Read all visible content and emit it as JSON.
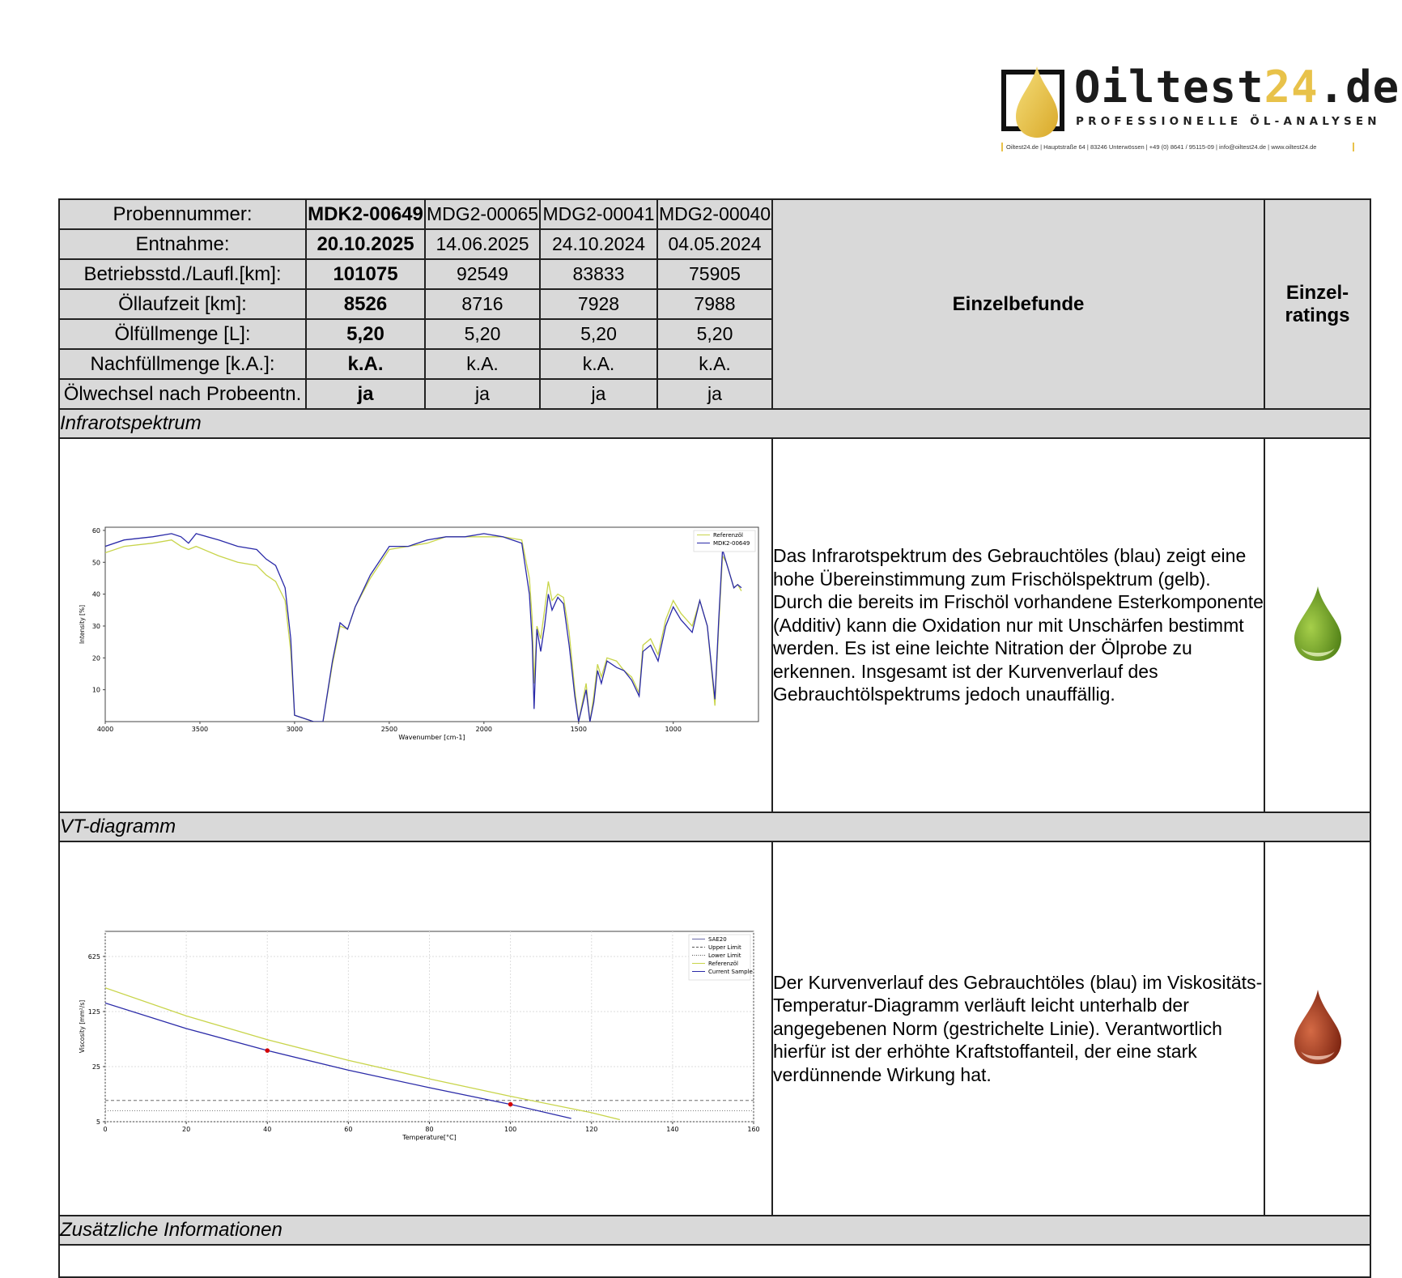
{
  "header": {
    "brand_main": "Oiltest",
    "brand_accent": "24",
    "brand_tld": ".de",
    "tagline": "PROFESSIONELLE ÖL-ANALYSEN",
    "contact": "Oiltest24.de  |  Hauptstraße 64  |  83246 Unterwössen  |  +49 (0) 8641 / 95115-09  |  info@oiltest24.de  |  www.oiltest24.de"
  },
  "samples_table": {
    "rows": [
      {
        "label": "Probennummer:",
        "values": [
          "MDK2-00649",
          "MDG2-00065",
          "MDG2-00041",
          "MDG2-00040"
        ]
      },
      {
        "label": "Entnahme:",
        "values": [
          "20.10.2025",
          "14.06.2025",
          "24.10.2024",
          "04.05.2024"
        ]
      },
      {
        "label": "Betriebsstd./Laufl.[km]:",
        "values": [
          "101075",
          "92549",
          "83833",
          "75905"
        ]
      },
      {
        "label": "Öllaufzeit [km]:",
        "values": [
          "8526",
          "8716",
          "7928",
          "7988"
        ]
      },
      {
        "label": "Ölfüllmenge [L]:",
        "values": [
          "5,20",
          "5,20",
          "5,20",
          "5,20"
        ]
      },
      {
        "label": "Nachfüllmenge [k.A.]:",
        "values": [
          "k.A.",
          "k.A.",
          "k.A.",
          "k.A."
        ]
      },
      {
        "label": "Ölwechsel nach Probeentn.",
        "values": [
          "ja",
          "ja",
          "ja",
          "ja"
        ]
      }
    ],
    "findings_header": "Einzelbefunde",
    "ratings_header_line1": "Einzel-",
    "ratings_header_line2": "ratings"
  },
  "sections": {
    "ir": {
      "title": "Infrarotspektrum",
      "finding": "Das Infrarotspektrum des Gebrauchtöles (blau) zeigt eine hohe Übereinstimmung zum Frischölspektrum (gelb). Durch die bereits im Frischöl vorhandene Esterkomponente (Additiv) kann die Oxidation nur mit Unschärfen bestimmt werden. Es ist eine leichte Nitration der Ölprobe zu erkennen. Insgesamt ist der Kurvenverlauf des Gebrauchtölspektrums jedoch unauffällig.",
      "rating_color": "#6fa02a"
    },
    "vt": {
      "title": "VT-diagramm",
      "finding": "Der Kurvenverlauf des Gebrauchtöles (blau) im Viskositäts-Temperatur-Diagramm verläuft leicht unterhalb der angegebenen Norm (gestrichelte Linie). Verantwortlich hierfür ist der erhöhte Kraftstoffanteil, der eine stark verdünnende Wirkung hat.",
      "rating_color": "#a83a1e"
    },
    "extra": {
      "title": "Zusätzliche Informationen"
    }
  },
  "chart_data": [
    {
      "type": "line",
      "xlabel": "Wavenumber [cm-1]",
      "ylabel": "Intensity [%]",
      "xlim": [
        4000,
        550
      ],
      "ylim": [
        0,
        61
      ],
      "x_ticks": [
        4000,
        3500,
        3000,
        2500,
        2000,
        1500,
        1000
      ],
      "y_ticks": [
        10,
        20,
        30,
        40,
        50,
        60
      ],
      "legend_position": "top-right",
      "colors": {
        "Referenzöl": "#c8d44a",
        "MDK2-00649": "#2a2aa8"
      },
      "series": [
        {
          "name": "Referenzöl",
          "points": [
            [
              4000,
              53
            ],
            [
              3900,
              55
            ],
            [
              3750,
              56
            ],
            [
              3650,
              57
            ],
            [
              3600,
              55
            ],
            [
              3560,
              54
            ],
            [
              3520,
              55
            ],
            [
              3400,
              52
            ],
            [
              3300,
              50
            ],
            [
              3200,
              49
            ],
            [
              3150,
              46
            ],
            [
              3100,
              44
            ],
            [
              3050,
              38
            ],
            [
              3020,
              22
            ],
            [
              3000,
              2
            ],
            [
              2900,
              0
            ],
            [
              2850,
              0
            ],
            [
              2800,
              18
            ],
            [
              2760,
              30
            ],
            [
              2720,
              29
            ],
            [
              2680,
              36
            ],
            [
              2600,
              45
            ],
            [
              2500,
              54
            ],
            [
              2400,
              55
            ],
            [
              2300,
              56
            ],
            [
              2200,
              58
            ],
            [
              2100,
              58
            ],
            [
              2000,
              58
            ],
            [
              1900,
              58
            ],
            [
              1800,
              57
            ],
            [
              1760,
              45
            ],
            [
              1745,
              32
            ],
            [
              1735,
              12
            ],
            [
              1720,
              30
            ],
            [
              1700,
              26
            ],
            [
              1680,
              35
            ],
            [
              1660,
              44
            ],
            [
              1640,
              38
            ],
            [
              1610,
              40
            ],
            [
              1580,
              39
            ],
            [
              1550,
              28
            ],
            [
              1520,
              10
            ],
            [
              1500,
              0
            ],
            [
              1460,
              12
            ],
            [
              1440,
              0
            ],
            [
              1420,
              8
            ],
            [
              1400,
              18
            ],
            [
              1380,
              14
            ],
            [
              1350,
              20
            ],
            [
              1300,
              19
            ],
            [
              1260,
              16
            ],
            [
              1220,
              14
            ],
            [
              1180,
              9
            ],
            [
              1160,
              24
            ],
            [
              1120,
              26
            ],
            [
              1080,
              21
            ],
            [
              1040,
              32
            ],
            [
              1000,
              38
            ],
            [
              960,
              34
            ],
            [
              900,
              30
            ],
            [
              860,
              38
            ],
            [
              820,
              30
            ],
            [
              780,
              5
            ],
            [
              760,
              30
            ],
            [
              740,
              52
            ],
            [
              720,
              50
            ],
            [
              700,
              46
            ],
            [
              680,
              42
            ],
            [
              660,
              43
            ],
            [
              640,
              41
            ]
          ]
        },
        {
          "name": "MDK2-00649",
          "points": [
            [
              4000,
              55
            ],
            [
              3900,
              57
            ],
            [
              3750,
              58
            ],
            [
              3650,
              59
            ],
            [
              3600,
              58
            ],
            [
              3560,
              56
            ],
            [
              3520,
              59
            ],
            [
              3400,
              57
            ],
            [
              3300,
              55
            ],
            [
              3200,
              54
            ],
            [
              3150,
              51
            ],
            [
              3100,
              49
            ],
            [
              3050,
              42
            ],
            [
              3020,
              26
            ],
            [
              3000,
              2
            ],
            [
              2900,
              0
            ],
            [
              2850,
              0
            ],
            [
              2800,
              19
            ],
            [
              2760,
              31
            ],
            [
              2720,
              29
            ],
            [
              2680,
              36
            ],
            [
              2600,
              46
            ],
            [
              2500,
              55
            ],
            [
              2400,
              55
            ],
            [
              2300,
              57
            ],
            [
              2200,
              58
            ],
            [
              2100,
              58
            ],
            [
              2000,
              59
            ],
            [
              1900,
              58
            ],
            [
              1800,
              56
            ],
            [
              1760,
              40
            ],
            [
              1745,
              25
            ],
            [
              1735,
              4
            ],
            [
              1720,
              29
            ],
            [
              1700,
              22
            ],
            [
              1680,
              30
            ],
            [
              1660,
              40
            ],
            [
              1640,
              35
            ],
            [
              1610,
              39
            ],
            [
              1580,
              37
            ],
            [
              1550,
              24
            ],
            [
              1520,
              8
            ],
            [
              1500,
              0
            ],
            [
              1460,
              10
            ],
            [
              1440,
              0
            ],
            [
              1420,
              6
            ],
            [
              1400,
              16
            ],
            [
              1380,
              12
            ],
            [
              1350,
              19
            ],
            [
              1300,
              17
            ],
            [
              1260,
              16
            ],
            [
              1220,
              13
            ],
            [
              1180,
              8
            ],
            [
              1160,
              22
            ],
            [
              1120,
              24
            ],
            [
              1080,
              19
            ],
            [
              1040,
              30
            ],
            [
              1000,
              36
            ],
            [
              960,
              32
            ],
            [
              900,
              28
            ],
            [
              860,
              38
            ],
            [
              820,
              30
            ],
            [
              780,
              7
            ],
            [
              760,
              32
            ],
            [
              740,
              54
            ],
            [
              720,
              50
            ],
            [
              700,
              46
            ],
            [
              680,
              42
            ],
            [
              660,
              43
            ],
            [
              640,
              42
            ]
          ]
        }
      ]
    },
    {
      "type": "line",
      "xlabel": "Temperature[°C]",
      "ylabel": "Viscosity [mm²/s]",
      "xlim": [
        0,
        160
      ],
      "ylim": [
        5,
        1300
      ],
      "y_scale": "log",
      "x_ticks": [
        0,
        20,
        40,
        60,
        80,
        100,
        120,
        140,
        160
      ],
      "y_ticks": [
        5,
        25,
        125,
        625
      ],
      "grid": true,
      "legend_position": "top-right",
      "colors": {
        "SAE20": "#6a6aa8",
        "Upper Limit": "#555555",
        "Lower Limit": "#555555",
        "Referenzöl": "#c8d44a",
        "Current Sample": "#2a2aa8"
      },
      "series": [
        {
          "name": "SAE20",
          "points": []
        },
        {
          "name": "Upper Limit",
          "points": [
            [
              0,
              9.3
            ],
            [
              160,
              9.3
            ]
          ]
        },
        {
          "name": "Lower Limit",
          "points": [
            [
              0,
              6.9
            ],
            [
              160,
              6.9
            ]
          ]
        },
        {
          "name": "Referenzöl",
          "points": [
            [
              0,
              250
            ],
            [
              20,
              110
            ],
            [
              40,
              55
            ],
            [
              60,
              30
            ],
            [
              80,
              17.5
            ],
            [
              100,
              10.5
            ],
            [
              120,
              6.5
            ],
            [
              127,
              5.3
            ]
          ]
        },
        {
          "name": "Current Sample",
          "points": [
            [
              0,
              160
            ],
            [
              20,
              76
            ],
            [
              40,
              40
            ],
            [
              60,
              22.5
            ],
            [
              80,
              13.5
            ],
            [
              100,
              8.3
            ],
            [
              115,
              5.5
            ]
          ]
        }
      ],
      "markers": [
        [
          40,
          40
        ],
        [
          100,
          8.3
        ]
      ]
    }
  ]
}
